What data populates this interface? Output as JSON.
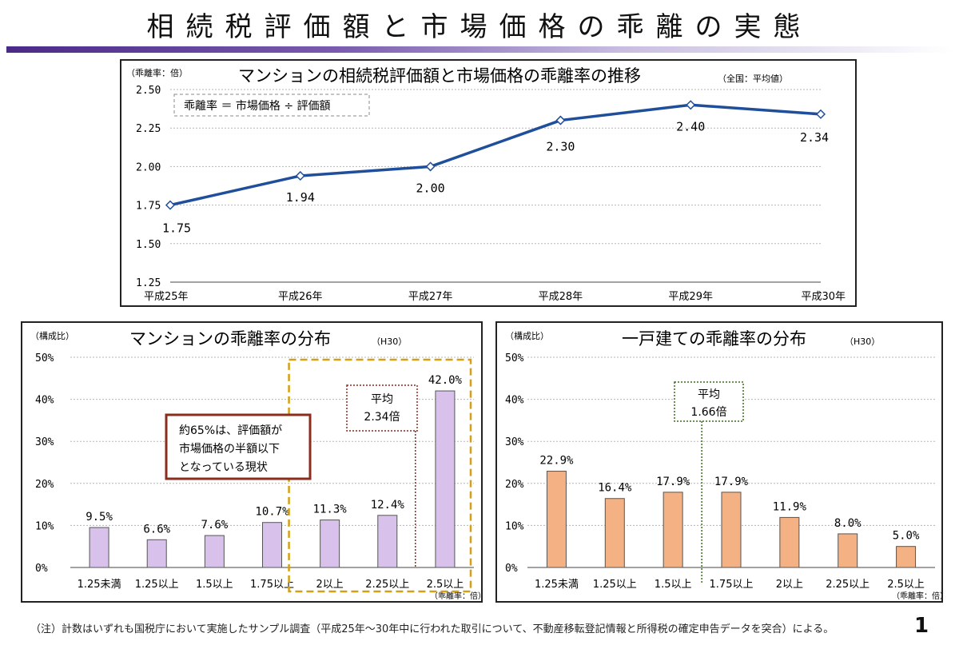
{
  "page": {
    "title": "相続税評価額と市場価格の乖離の実態",
    "footnote": "（注）計数はいずれも国税庁において実施したサンプル調査（平成25年～30年中に行われた取引について、不動産移転登記情報と所得税の確定申告データを突合）による。",
    "page_number": "1"
  },
  "chart_data": [
    {
      "type": "line",
      "title": "マンションの相続税評価額と市場価格の乖離率の推移",
      "subtitle": "（全国：平均値）",
      "ylabel": "（乖離率：倍）",
      "formula": "乖離率 ＝ 市場価格 ÷ 評価額",
      "categories": [
        "平成25年",
        "平成26年",
        "平成27年",
        "平成28年",
        "平成29年",
        "平成30年"
      ],
      "values": [
        1.75,
        1.94,
        2.0,
        2.3,
        2.4,
        2.34
      ],
      "value_labels": [
        "1.75",
        "1.94",
        "2.00",
        "2.30",
        "2.40",
        "2.34"
      ],
      "yticks": [
        "2.50",
        "2.25",
        "2.00",
        "1.75",
        "1.50",
        "1.25"
      ],
      "ylim": [
        1.25,
        2.5
      ],
      "color": "#1f4e9a",
      "grid": true
    },
    {
      "type": "bar",
      "title": "マンションの乖離率の分布",
      "subtitle": "（H30）",
      "ylabel": "（構成比）",
      "xunit": "（乖離率：倍）",
      "categories": [
        "1.25未満",
        "1.25以上",
        "1.5以上",
        "1.75以上",
        "2以上",
        "2.25以上",
        "2.5以上"
      ],
      "values": [
        9.5,
        6.6,
        7.6,
        10.7,
        11.3,
        12.4,
        42.0
      ],
      "value_labels": [
        "9.5%",
        "6.6%",
        "7.6%",
        "10.7%",
        "11.3%",
        "12.4%",
        "42.0%"
      ],
      "yticks": [
        "50%",
        "40%",
        "30%",
        "20%",
        "10%",
        "0%"
      ],
      "ylim": [
        0,
        50
      ],
      "color": "#d8c2ec",
      "average_label": [
        "平均",
        "2.34倍"
      ],
      "callout": [
        "約65%は、評価額が",
        "市場価格の半額以下",
        "となっている現状"
      ],
      "highlight_from_index": 4
    },
    {
      "type": "bar",
      "title": "一戸建ての乖離率の分布",
      "subtitle": "（H30）",
      "ylabel": "（構成比）",
      "xunit": "（乖離率：倍）",
      "categories": [
        "1.25未満",
        "1.25以上",
        "1.5以上",
        "1.75以上",
        "2以上",
        "2.25以上",
        "2.5以上"
      ],
      "values": [
        22.9,
        16.4,
        17.9,
        17.9,
        11.9,
        8.0,
        5.0
      ],
      "value_labels": [
        "22.9%",
        "16.4%",
        "17.9%",
        "17.9%",
        "11.9%",
        "8.0%",
        "5.0%"
      ],
      "yticks": [
        "50%",
        "40%",
        "30%",
        "20%",
        "10%",
        "0%"
      ],
      "ylim": [
        0,
        50
      ],
      "color": "#f4b183",
      "average_label": [
        "平均",
        "1.66倍"
      ]
    }
  ]
}
